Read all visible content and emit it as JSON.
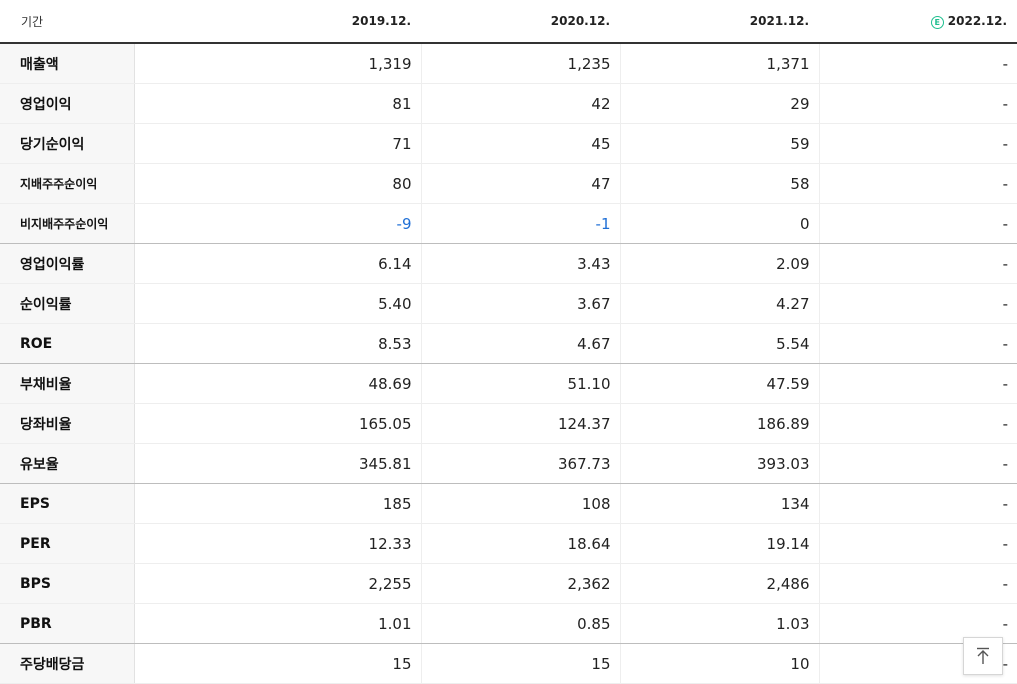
{
  "header": {
    "label": "기간",
    "est_mark": "E",
    "periods": [
      "2019.12.",
      "2020.12.",
      "2021.12.",
      "2022.12."
    ]
  },
  "rows": [
    {
      "label": "매출액",
      "values": [
        "1,319",
        "1,235",
        "1,371",
        "-"
      ]
    },
    {
      "label": "영업이익",
      "values": [
        "81",
        "42",
        "29",
        "-"
      ]
    },
    {
      "label": "당기순이익",
      "values": [
        "71",
        "45",
        "59",
        "-"
      ]
    },
    {
      "label": "지배주주순이익",
      "values": [
        "80",
        "47",
        "58",
        "-"
      ]
    },
    {
      "label": "비지배주주순이익",
      "values": [
        "-9",
        "-1",
        "0",
        "-"
      ]
    },
    {
      "label": "영업이익률",
      "values": [
        "6.14",
        "3.43",
        "2.09",
        "-"
      ]
    },
    {
      "label": "순이익률",
      "values": [
        "5.40",
        "3.67",
        "4.27",
        "-"
      ]
    },
    {
      "label": "ROE",
      "values": [
        "8.53",
        "4.67",
        "5.54",
        "-"
      ]
    },
    {
      "label": "부채비율",
      "values": [
        "48.69",
        "51.10",
        "47.59",
        "-"
      ]
    },
    {
      "label": "당좌비율",
      "values": [
        "165.05",
        "124.37",
        "186.89",
        "-"
      ]
    },
    {
      "label": "유보율",
      "values": [
        "345.81",
        "367.73",
        "393.03",
        "-"
      ]
    },
    {
      "label": "EPS",
      "values": [
        "185",
        "108",
        "134",
        "-"
      ]
    },
    {
      "label": "PER",
      "values": [
        "12.33",
        "18.64",
        "19.14",
        "-"
      ]
    },
    {
      "label": "BPS",
      "values": [
        "2,255",
        "2,362",
        "2,486",
        "-"
      ]
    },
    {
      "label": "PBR",
      "values": [
        "1.01",
        "0.85",
        "1.03",
        "-"
      ]
    },
    {
      "label": "주당배당금",
      "values": [
        "15",
        "15",
        "10",
        "-"
      ]
    }
  ],
  "colors": {
    "negative": "#1f6fd6",
    "estimate_badge": "#1fbf8f"
  },
  "scroll_top_button": {
    "icon": "arrow-up-to-top-icon"
  }
}
